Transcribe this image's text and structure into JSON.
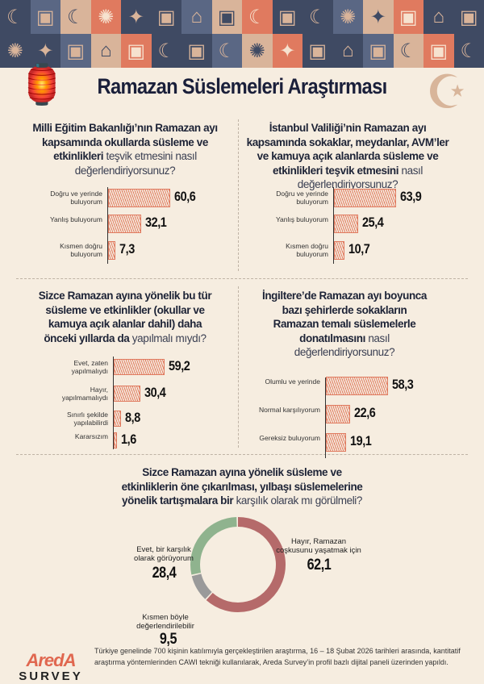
{
  "title": "Ramazan Süslemeleri Araştırması",
  "colors": {
    "background": "#f6ede0",
    "bar": "#e07a5f",
    "navy": "#3f4a63",
    "donut_red": "#b56a6a",
    "donut_green": "#8fb38e",
    "donut_gray": "#9a9a9a",
    "beige": "#d9b49a"
  },
  "banner_icons": [
    "arch-moon-icon",
    "lantern-icon",
    "crescent-icon",
    "sun-moon-icon",
    "star-icon",
    "lantern-icon",
    "mosque-icon",
    "lantern-icon"
  ],
  "chart_data": [
    {
      "type": "bar",
      "question_bold": "Milli Eğitim Bakanlığı’nın Ramazan ayı kapsamında okullarda süsleme ve etkinlikleri",
      "question_regular": "teşvik etmesini nasıl değerlendiriyorsunuz?",
      "categories": [
        "Doğru ve yerinde buluyorum",
        "Yanlış buluyorum",
        "Kısmen doğru buluyorum"
      ],
      "values": [
        60.6,
        32.1,
        7.3
      ],
      "value_labels": [
        "60,6",
        "32,1",
        "7,3"
      ]
    },
    {
      "type": "bar",
      "question_bold": "İstanbul Valiliği’nin Ramazan ayı kapsamında sokaklar, meydanlar, AVM’ler ve kamuya açık alanlarda süsleme ve etkinlikleri teşvik etmesini",
      "question_regular": "nasıl değerlendiriyorsunuz?",
      "categories": [
        "Doğru ve yerinde buluyorum",
        "Yanlış buluyorum",
        "Kısmen doğru buluyorum"
      ],
      "values": [
        63.9,
        25.4,
        10.7
      ],
      "value_labels": [
        "63,9",
        "25,4",
        "10,7"
      ]
    },
    {
      "type": "bar",
      "question_bold": "Sizce Ramazan ayına yönelik bu tür süsleme ve etkinlikler (okullar ve kamuya açık alanlar dahil) daha önceki yıllarda da",
      "question_regular": "yapılmalı mıydı?",
      "categories": [
        "Evet, zaten yapılmalıydı",
        "Hayır, yapılmamalıydı",
        "Sınırlı şekilde yapılabilirdi",
        "Kararsızım"
      ],
      "values": [
        59.2,
        30.4,
        8.8,
        1.6
      ],
      "value_labels": [
        "59,2",
        "30,4",
        "8,8",
        "1,6"
      ]
    },
    {
      "type": "bar",
      "question_bold": "İngiltere’de Ramazan ayı boyunca bazı şehirlerde sokakların Ramazan temalı süslemelerle donatılmasını",
      "question_regular": "nasıl değerlendiriyorsunuz?",
      "categories": [
        "Olumlu ve yerinde",
        "Normal karşılıyorum",
        "Gereksiz buluyorum"
      ],
      "values": [
        58.3,
        22.6,
        19.1
      ],
      "value_labels": [
        "58,3",
        "22,6",
        "19,1"
      ]
    },
    {
      "type": "pie",
      "question_bold": "Sizce Ramazan ayına yönelik süsleme ve etkinliklerin öne çıkarılması, yılbaşı süslemelerine yönelik tartışmalara bir",
      "question_regular": "karşılık olarak mı görülmeli?",
      "categories": [
        "Hayır, Ramazan coşkusunu yaşatmak için",
        "Kısmen böyle değerlendirilebilir",
        "Evet, bir karşılık olarak görüyorum"
      ],
      "values": [
        62.1,
        9.5,
        28.4
      ],
      "value_labels": [
        "62,1",
        "9,5",
        "28,4"
      ],
      "colors": [
        "#b56a6a",
        "#9a9a9a",
        "#8fb38e"
      ]
    }
  ],
  "footer": {
    "logo_text": "AredA",
    "logo_sub": "SURVEY",
    "note": "Türkiye genelinde 700 kişinin katılımıyla gerçekleştirilen araştırma, 16 – 18 Şubat 2026 tarihleri arasında, kantitatif araştırma yöntemlerinden CAWI tekniği kullanılarak, Areda Survey’in profil bazlı dijital paneli üzerinden yapıldı."
  }
}
